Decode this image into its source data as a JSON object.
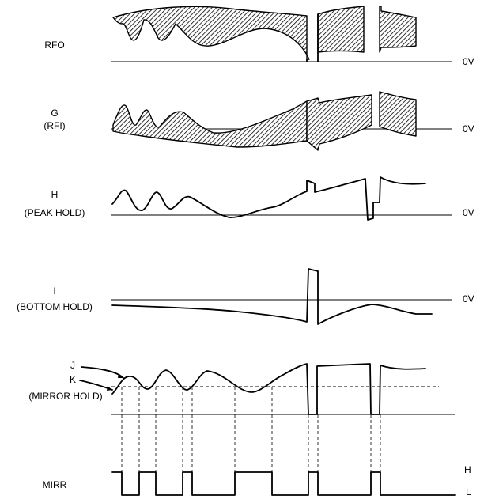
{
  "labels": {
    "rfo": "RFO",
    "g": "G",
    "g_sub": "(RFI)",
    "h": "H",
    "h_sub": "(PEAK HOLD)",
    "i": "I",
    "i_sub": "(BOTTOM HOLD)",
    "j": "J",
    "k": "K",
    "mirror_hold": "(MIRROR HOLD)",
    "mirr": "MIRR"
  },
  "levels": {
    "zero_rfo": "0V",
    "zero_g": "0V",
    "zero_h": "0V",
    "zero_i": "0V",
    "mirr_high": "H",
    "mirr_low": "L"
  }
}
